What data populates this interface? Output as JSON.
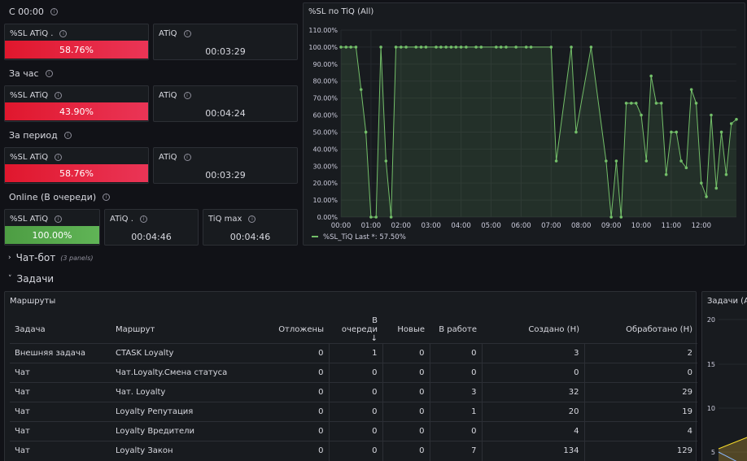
{
  "sections": {
    "c0000": "С 00:00",
    "hour": "За час",
    "period": "За период",
    "online": "Online (В очереди)"
  },
  "stats": {
    "s1": {
      "title": "%SL ATiQ .",
      "value": "58.76%"
    },
    "s2": {
      "title": "ATiQ",
      "value": "00:03:29"
    },
    "s3": {
      "title": "%SL ATiQ",
      "value": "43.90%"
    },
    "s4": {
      "title": "ATiQ",
      "value": "00:04:24"
    },
    "s5": {
      "title": "%SL ATiQ",
      "value": "58.76%"
    },
    "s6": {
      "title": "ATiQ",
      "value": "00:03:29"
    },
    "s7": {
      "title": "%SL ATiQ",
      "value": "100.00%"
    },
    "s8": {
      "title": "ATiQ .",
      "value": "00:04:46"
    },
    "s9": {
      "title": "TiQ max",
      "value": "00:04:46"
    }
  },
  "colors": {
    "red": "#e02f44",
    "green": "#56a64b",
    "panel_bg": "#181b1f"
  },
  "rows": {
    "chatbot": {
      "label": "Чат-бот",
      "sub": "(3 panels)"
    },
    "tasks": {
      "label": "Задачи"
    }
  },
  "chart_data": {
    "type": "line",
    "title": "%SL по TiQ (All)",
    "ylim": [
      0,
      110
    ],
    "y_ticks": [
      "0.00%",
      "10.00%",
      "20.00%",
      "30.00%",
      "40.00%",
      "50.00%",
      "60.00%",
      "70.00%",
      "80.00%",
      "90.00%",
      "100.00%",
      "110.00%"
    ],
    "x_ticks": [
      "00:00",
      "01:00",
      "02:00",
      "03:00",
      "04:00",
      "05:00",
      "06:00",
      "07:00",
      "08:00",
      "09:00",
      "10:00",
      "11:00",
      "12:00"
    ],
    "series": [
      {
        "name": "%SL_TiQ",
        "legend": "%SL_TiQ  Last *: 57.50%",
        "color": "#73bf69",
        "points": [
          [
            0.0,
            100
          ],
          [
            0.17,
            100
          ],
          [
            0.33,
            100
          ],
          [
            0.5,
            100
          ],
          [
            0.67,
            75
          ],
          [
            0.83,
            50
          ],
          [
            1.0,
            0
          ],
          [
            1.17,
            0
          ],
          [
            1.33,
            100
          ],
          [
            1.5,
            33
          ],
          [
            1.67,
            0
          ],
          [
            1.83,
            100
          ],
          [
            2.0,
            100
          ],
          [
            2.17,
            100
          ],
          [
            2.5,
            100
          ],
          [
            2.67,
            100
          ],
          [
            2.83,
            100
          ],
          [
            3.17,
            100
          ],
          [
            3.33,
            100
          ],
          [
            3.5,
            100
          ],
          [
            3.67,
            100
          ],
          [
            3.83,
            100
          ],
          [
            4.0,
            100
          ],
          [
            4.17,
            100
          ],
          [
            4.5,
            100
          ],
          [
            4.67,
            100
          ],
          [
            5.17,
            100
          ],
          [
            5.33,
            100
          ],
          [
            5.5,
            100
          ],
          [
            5.83,
            100
          ],
          [
            6.17,
            100
          ],
          [
            6.33,
            100
          ],
          [
            7.0,
            100
          ],
          [
            7.17,
            33
          ],
          [
            7.67,
            100
          ],
          [
            7.83,
            50
          ],
          [
            8.33,
            100
          ],
          [
            8.83,
            33
          ],
          [
            9.0,
            0
          ],
          [
            9.17,
            33
          ],
          [
            9.33,
            0
          ],
          [
            9.5,
            67
          ],
          [
            9.67,
            67
          ],
          [
            9.83,
            67
          ],
          [
            10.0,
            60
          ],
          [
            10.17,
            33
          ],
          [
            10.33,
            83
          ],
          [
            10.5,
            67
          ],
          [
            10.67,
            67
          ],
          [
            10.83,
            25
          ],
          [
            11.0,
            50
          ],
          [
            11.17,
            50
          ],
          [
            11.33,
            33
          ],
          [
            11.5,
            29
          ],
          [
            11.67,
            75
          ],
          [
            11.83,
            67
          ],
          [
            12.0,
            20
          ],
          [
            12.17,
            12
          ],
          [
            12.33,
            60
          ],
          [
            12.5,
            17
          ],
          [
            12.67,
            50
          ],
          [
            12.83,
            25
          ],
          [
            13.0,
            55
          ],
          [
            13.17,
            57.5
          ]
        ]
      }
    ]
  },
  "routes_panel": {
    "title": "Маршруты",
    "columns": [
      "Задача",
      "Маршрут",
      "Отложены",
      "В очереди ↓",
      "Новые",
      "В работе",
      "Создано (Н)",
      "Обработано (Н)"
    ],
    "rows": [
      [
        "Внешняя задача",
        "CTASK Loyalty",
        "0",
        "1",
        "0",
        "0",
        "3",
        "2"
      ],
      [
        "Чат",
        "Чат.Loyalty.Смена статуса",
        "0",
        "0",
        "0",
        "0",
        "0",
        "0"
      ],
      [
        "Чат",
        "Чат. Loyalty",
        "0",
        "0",
        "0",
        "3",
        "32",
        "29"
      ],
      [
        "Чат",
        "Loyalty Репутация",
        "0",
        "0",
        "0",
        "1",
        "20",
        "19"
      ],
      [
        "Чат",
        "Loyalty Вредители",
        "0",
        "0",
        "0",
        "0",
        "4",
        "4"
      ],
      [
        "Чат",
        "Loyalty Закон",
        "0",
        "0",
        "0",
        "7",
        "134",
        "129"
      ]
    ]
  },
  "tasks_panel": {
    "title": "Задачи (All)",
    "y_ticks": [
      "20",
      "15",
      "10",
      "5"
    ]
  }
}
